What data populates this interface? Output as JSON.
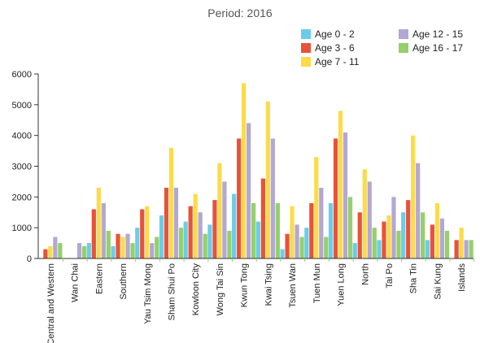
{
  "chart_data": {
    "type": "bar",
    "title": "Period: 2016",
    "xlabel": "",
    "ylabel": "",
    "ylim": [
      0,
      6000
    ],
    "yticks": [
      0,
      1000,
      2000,
      3000,
      4000,
      5000,
      6000
    ],
    "grid": false,
    "legend_position": "top-right",
    "categories": [
      "Central and Western",
      "Wan Chai",
      "Eastern",
      "Southern",
      "Yau Tsim Mong",
      "Sham Shui Po",
      "Kowloon City",
      "Wong Tai Sin",
      "Kwun Tong",
      "Kwai Tsing",
      "Tsuen Wan",
      "Tuen Mun",
      "Yuen Long",
      "North",
      "Tai Po",
      "Sha Tin",
      "Sai Kung",
      "Islands"
    ],
    "series": [
      {
        "name": "Age 0 - 2",
        "color": "#6bcde8",
        "values": [
          0,
          0,
          500,
          400,
          1000,
          1400,
          1200,
          1100,
          2100,
          1200,
          300,
          1000,
          1800,
          500,
          600,
          1500,
          600,
          0
        ]
      },
      {
        "name": "Age 3 - 6",
        "color": "#e8523a",
        "values": [
          300,
          0,
          1600,
          800,
          1600,
          2300,
          1700,
          1900,
          3900,
          2600,
          800,
          1800,
          3900,
          1500,
          1200,
          1900,
          1100,
          600
        ]
      },
      {
        "name": "Age 7 - 11",
        "color": "#fcdb4a",
        "values": [
          400,
          0,
          2300,
          700,
          1700,
          3600,
          2100,
          3100,
          5700,
          5100,
          1700,
          3300,
          4800,
          2900,
          1400,
          4000,
          1800,
          1000
        ]
      },
      {
        "name": "Age 12 - 15",
        "color": "#b3a7d3",
        "values": [
          700,
          500,
          1800,
          800,
          500,
          2300,
          1500,
          2500,
          4400,
          3900,
          1100,
          2300,
          4100,
          2500,
          2000,
          3100,
          1300,
          600
        ]
      },
      {
        "name": "Age 16 - 17",
        "color": "#95d06b",
        "values": [
          500,
          400,
          900,
          500,
          700,
          1000,
          800,
          900,
          1800,
          1800,
          700,
          700,
          2000,
          1000,
          900,
          1500,
          900,
          600
        ]
      }
    ]
  }
}
